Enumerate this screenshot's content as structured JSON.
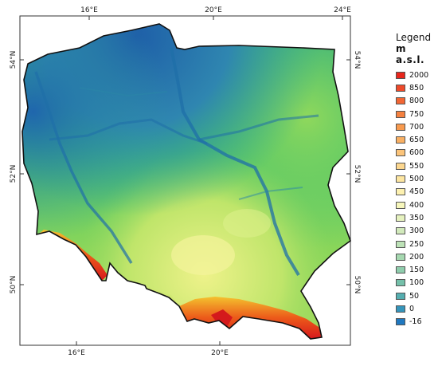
{
  "map": {
    "top_ticks": [
      "16°E",
      "20°E",
      "24°E"
    ],
    "bottom_ticks": [
      "16°E",
      "20°E"
    ],
    "left_ticks": [
      "54°N",
      "52°N",
      "50°N"
    ],
    "right_ticks": [
      "54°N",
      "52°N",
      "50°N"
    ]
  },
  "legend": {
    "title": "Legend",
    "subtitle": "m a.s.l.",
    "items": [
      {
        "label": "2000",
        "color": "#e8261c"
      },
      {
        "label": "850",
        "color": "#ee4a2a"
      },
      {
        "label": "800",
        "color": "#f26634"
      },
      {
        "label": "750",
        "color": "#f5813f"
      },
      {
        "label": "700",
        "color": "#f89a4e"
      },
      {
        "label": "650",
        "color": "#f9b063"
      },
      {
        "label": "600",
        "color": "#fbc47a"
      },
      {
        "label": "550",
        "color": "#fcd78f"
      },
      {
        "label": "500",
        "color": "#fde6a1"
      },
      {
        "label": "450",
        "color": "#fdf1b0"
      },
      {
        "label": "400",
        "color": "#f7f7bc"
      },
      {
        "label": "350",
        "color": "#e6f2bf"
      },
      {
        "label": "300",
        "color": "#d2eabc"
      },
      {
        "label": "250",
        "color": "#bde2b7"
      },
      {
        "label": "200",
        "color": "#a6d8b0"
      },
      {
        "label": "150",
        "color": "#8fcdad"
      },
      {
        "label": "100",
        "color": "#75c0aa"
      },
      {
        "label": "50",
        "color": "#55aeb0"
      },
      {
        "label": "0",
        "color": "#3595bb"
      },
      {
        "label": "-16",
        "color": "#1f78c0"
      }
    ]
  }
}
